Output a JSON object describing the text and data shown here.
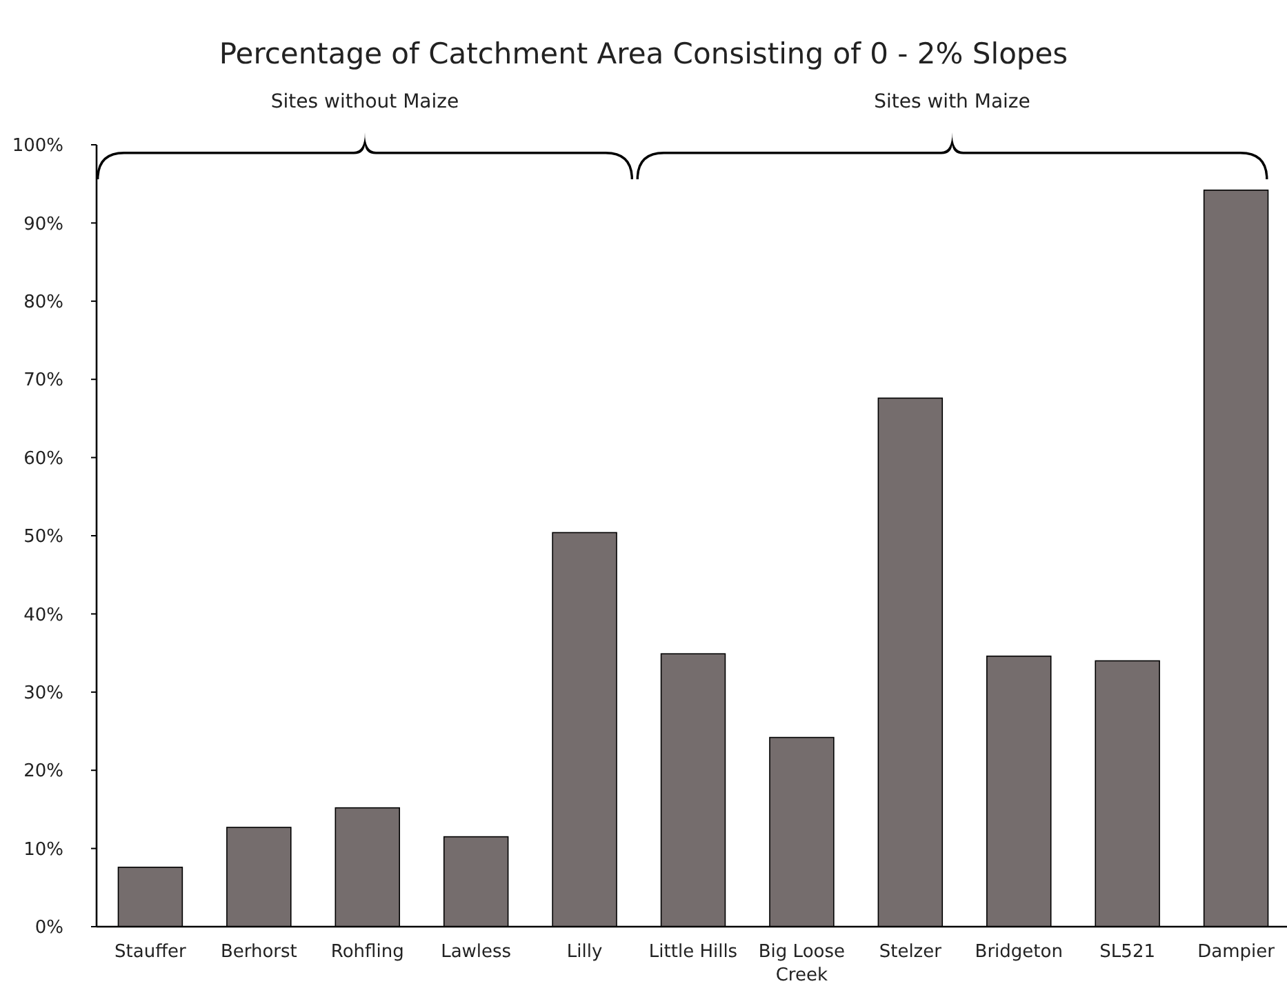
{
  "chart_data": {
    "type": "bar",
    "title": "Percentage of Catchment Area Consisting of 0 - 2% Slopes",
    "categories": [
      "Stauffer",
      "Berhorst",
      "Rohfling",
      "Lawless",
      "Lilly",
      "Little Hills",
      "Big Loose Creek",
      "Stelzer",
      "Bridgeton",
      "SL521",
      "Dampier"
    ],
    "values": [
      7.6,
      12.7,
      15.2,
      11.5,
      50.4,
      34.9,
      24.2,
      67.6,
      34.6,
      34.0,
      94.2
    ],
    "color": "#756d6d",
    "ylim": [
      0,
      100
    ],
    "yticks": [
      {
        "value": 0,
        "label": "0%"
      },
      {
        "value": 10,
        "label": "10%"
      },
      {
        "value": 20,
        "label": "20%"
      },
      {
        "value": 30,
        "label": "30%"
      },
      {
        "value": 40,
        "label": "40%"
      },
      {
        "value": 50,
        "label": "50%"
      },
      {
        "value": 60,
        "label": "60%"
      },
      {
        "value": 70,
        "label": "70%"
      },
      {
        "value": 80,
        "label": "80%"
      },
      {
        "value": 90,
        "label": "90%"
      },
      {
        "value": 100,
        "label": "100%"
      }
    ],
    "annotations": [
      "Sites without Maize",
      "Sites with Maize"
    ],
    "grid": false
  }
}
